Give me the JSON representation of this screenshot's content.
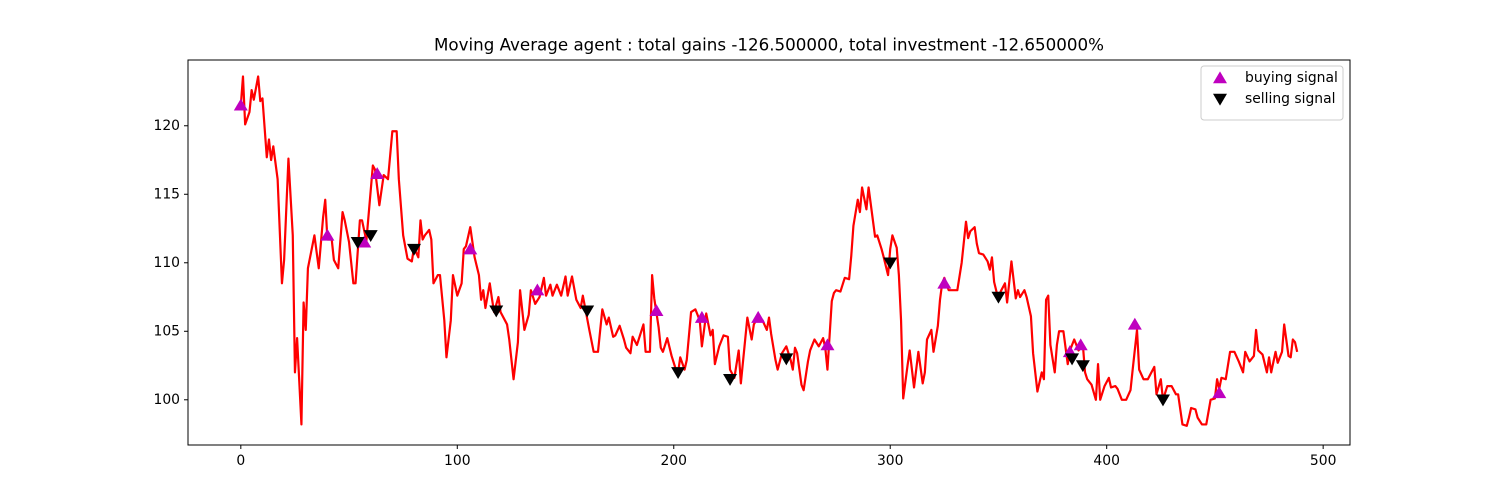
{
  "chart_data": {
    "type": "line",
    "title": "Moving Average agent : total gains -126.500000, total investment -12.650000%",
    "xlim": [
      -24.4,
      512.4
    ],
    "ylim": [
      96.7,
      124.8
    ],
    "xticks": [
      0,
      100,
      200,
      300,
      400,
      500
    ],
    "yticks": [
      100,
      105,
      110,
      115,
      120
    ],
    "grid": false,
    "legend": "upper right",
    "x": [
      0,
      1,
      2,
      4,
      5,
      6,
      8,
      9,
      10,
      12,
      13,
      14,
      15,
      17,
      19,
      20,
      22,
      24,
      25,
      26,
      28,
      29,
      30,
      31,
      34,
      36,
      38,
      39,
      40,
      42,
      43,
      45,
      47,
      48,
      50,
      52,
      53,
      55,
      56,
      58,
      61,
      62,
      64,
      66,
      68,
      70,
      72,
      73,
      75,
      77,
      79,
      80,
      82,
      83,
      84,
      85,
      87,
      88,
      89,
      91,
      92,
      94,
      95,
      97,
      98,
      100,
      102,
      103,
      104,
      106,
      108,
      110,
      111,
      112,
      113,
      115,
      116,
      117,
      119,
      120,
      122,
      123,
      124,
      126,
      128,
      129,
      131,
      133,
      134,
      136,
      138,
      140,
      141,
      143,
      144,
      146,
      148,
      150,
      151,
      153,
      155,
      157,
      158,
      161,
      163,
      165,
      167,
      169,
      170,
      172,
      173,
      175,
      177,
      178,
      180,
      181,
      183,
      186,
      187,
      189,
      190,
      191,
      193,
      194,
      195,
      197,
      199,
      201,
      202,
      203,
      205,
      206,
      208,
      210,
      212,
      213,
      215,
      217,
      218,
      219,
      221,
      223,
      225,
      226,
      228,
      230,
      231,
      233,
      234,
      236,
      237,
      239,
      241,
      243,
      244,
      245,
      247,
      248,
      250,
      252,
      254,
      255,
      256,
      257,
      259,
      260,
      262,
      263,
      265,
      267,
      269,
      270,
      271,
      273,
      274,
      275,
      277,
      279,
      281,
      282,
      283,
      285,
      286,
      287,
      289,
      290,
      292,
      293,
      294,
      296,
      297,
      299,
      300,
      301,
      303,
      304,
      305,
      306,
      308,
      309,
      311,
      312,
      313,
      315,
      316,
      317,
      319,
      320,
      322,
      323,
      324,
      325,
      327,
      329,
      331,
      333,
      335,
      336,
      337,
      339,
      340,
      341,
      343,
      345,
      346,
      347,
      348,
      350,
      351,
      353,
      354,
      356,
      358,
      359,
      360,
      362,
      363,
      365,
      366,
      368,
      370,
      371,
      372,
      373,
      374,
      376,
      377,
      378,
      380,
      382,
      383,
      385,
      387,
      389,
      390,
      391,
      393,
      395,
      396,
      397,
      399,
      401,
      402,
      404,
      405,
      407,
      409,
      411,
      412,
      414,
      415,
      417,
      419,
      420,
      422,
      423,
      425,
      426,
      428,
      430,
      432,
      433,
      435,
      437,
      438,
      439,
      441,
      442,
      444,
      446,
      448,
      450,
      451,
      452,
      453,
      455,
      457,
      459,
      461,
      463,
      464,
      466,
      468,
      469,
      470,
      472,
      474,
      475,
      476,
      478,
      479,
      481,
      482,
      484,
      485,
      486,
      487,
      488
    ],
    "series": [
      {
        "color": "#ff0000",
        "values": [
          121.5,
          123.6,
          120.1,
          121,
          122.6,
          121.9,
          123.6,
          121.8,
          122,
          117.7,
          119,
          117.5,
          118.5,
          116.1,
          108.5,
          110.2,
          117.6,
          112,
          102,
          104.5,
          98.2,
          107.1,
          105.1,
          109.6,
          112,
          109.6,
          113.3,
          114.6,
          111.7,
          111.7,
          110.2,
          109.6,
          113.7,
          113.1,
          111.5,
          108.5,
          108.5,
          113.1,
          113.1,
          111.6,
          117.1,
          116.8,
          114.2,
          116.4,
          116.1,
          119.6,
          119.6,
          116.1,
          112,
          110.3,
          110.1,
          111.1,
          110.4,
          113.1,
          111.7,
          112,
          112.4,
          111.7,
          108.5,
          109.1,
          109.1,
          105.8,
          103.1,
          105.8,
          109.1,
          107.6,
          108.5,
          111,
          111.2,
          112.6,
          110.4,
          109.1,
          107.3,
          108,
          106.7,
          108.5,
          107.4,
          106.4,
          107.5,
          106.4,
          105.8,
          105.5,
          104.4,
          101.5,
          104.2,
          108,
          105.1,
          106.2,
          108,
          107,
          107.5,
          108.9,
          107.6,
          108.4,
          107.6,
          108.4,
          107.6,
          109,
          107.6,
          109,
          107.3,
          106.7,
          107.6,
          105.1,
          103.5,
          103.5,
          106.6,
          105.5,
          106,
          104.6,
          104.7,
          105.4,
          104.4,
          103.8,
          103.4,
          104.6,
          104,
          105.5,
          103.5,
          103.5,
          109.1,
          107.4,
          105.3,
          103.8,
          103.5,
          104.5,
          103.2,
          102.2,
          102,
          103.1,
          102.2,
          102.9,
          106.4,
          106.6,
          105.8,
          103.9,
          106.3,
          104.7,
          105.1,
          102.6,
          103.9,
          104.7,
          104.6,
          102.2,
          101.6,
          103.6,
          101.2,
          104.4,
          106,
          104.4,
          105.5,
          106.1,
          105.8,
          105.1,
          106,
          104.8,
          102.9,
          102.2,
          103.4,
          103.9,
          102.9,
          102.2,
          103.8,
          103.4,
          101.1,
          100.7,
          102.8,
          103.6,
          104.4,
          103.9,
          104.5,
          103.8,
          102.2,
          107.2,
          107.8,
          108,
          107.9,
          108.9,
          108.8,
          110.5,
          112.7,
          114.6,
          113.7,
          115.5,
          113.9,
          115.5,
          113.1,
          111.9,
          112,
          111,
          110.4,
          109.1,
          111,
          112,
          111.1,
          109.1,
          105.8,
          100.1,
          102.5,
          103.6,
          100.9,
          102.2,
          103.5,
          101.2,
          102,
          104.4,
          105.1,
          103.5,
          105.4,
          107.3,
          108.5,
          108.9,
          108,
          108,
          108,
          110,
          113,
          111.8,
          112.3,
          112.6,
          111.4,
          110.7,
          110.6,
          110.1,
          109.5,
          110.4,
          108.6,
          107.3,
          107.9,
          108.5,
          107.1,
          110.1,
          107.4,
          108,
          107.5,
          108,
          107.5,
          106.1,
          103.4,
          100.6,
          102,
          101.5,
          107.3,
          107.6,
          104,
          102,
          104,
          105,
          105,
          102.6,
          103.6,
          104.4,
          103.6,
          104,
          102,
          101.5,
          101.1,
          100,
          102.6,
          100,
          101,
          101.6,
          100.9,
          101,
          100.8,
          100,
          100,
          100.7,
          102.2,
          105.1,
          102.2,
          101.5,
          101.5,
          101.8,
          102.4,
          100.4,
          101.5,
          100,
          101,
          101,
          100.4,
          100.4,
          98.2,
          98.1,
          98.7,
          99.4,
          99.3,
          98.7,
          98.2,
          98.2,
          100,
          100.1,
          101.5,
          100.8,
          101.6,
          101.5,
          103.5,
          103.5,
          102.8,
          102,
          103.5,
          102.8,
          103.2,
          105.1,
          103.6,
          103.3,
          102,
          103.1,
          102,
          103.5,
          102.7,
          103.5,
          105.5,
          103.2,
          103.1,
          104.4,
          104.2,
          103.5
        ]
      },
      {
        "name": "buying signal",
        "type": "scatter",
        "marker": "^",
        "color": "#bf00bf",
        "x": [
          0,
          40,
          57,
          63,
          106,
          137,
          192,
          213,
          239,
          271,
          325,
          383,
          388,
          413,
          452
        ],
        "values": [
          121.5,
          112,
          111.5,
          116.5,
          111,
          108,
          106.5,
          106,
          106,
          104,
          108.5,
          103.5,
          104,
          105.5,
          100.5
        ]
      },
      {
        "name": "selling signal",
        "type": "scatter",
        "marker": "v",
        "color": "#000000",
        "x": [
          54,
          60,
          80,
          118,
          160,
          202,
          226,
          252,
          300,
          350,
          384,
          389,
          426
        ],
        "values": [
          111.5,
          112,
          111,
          106.5,
          106.5,
          102,
          101.5,
          103,
          110,
          107.5,
          103,
          102.5,
          100
        ]
      }
    ]
  }
}
